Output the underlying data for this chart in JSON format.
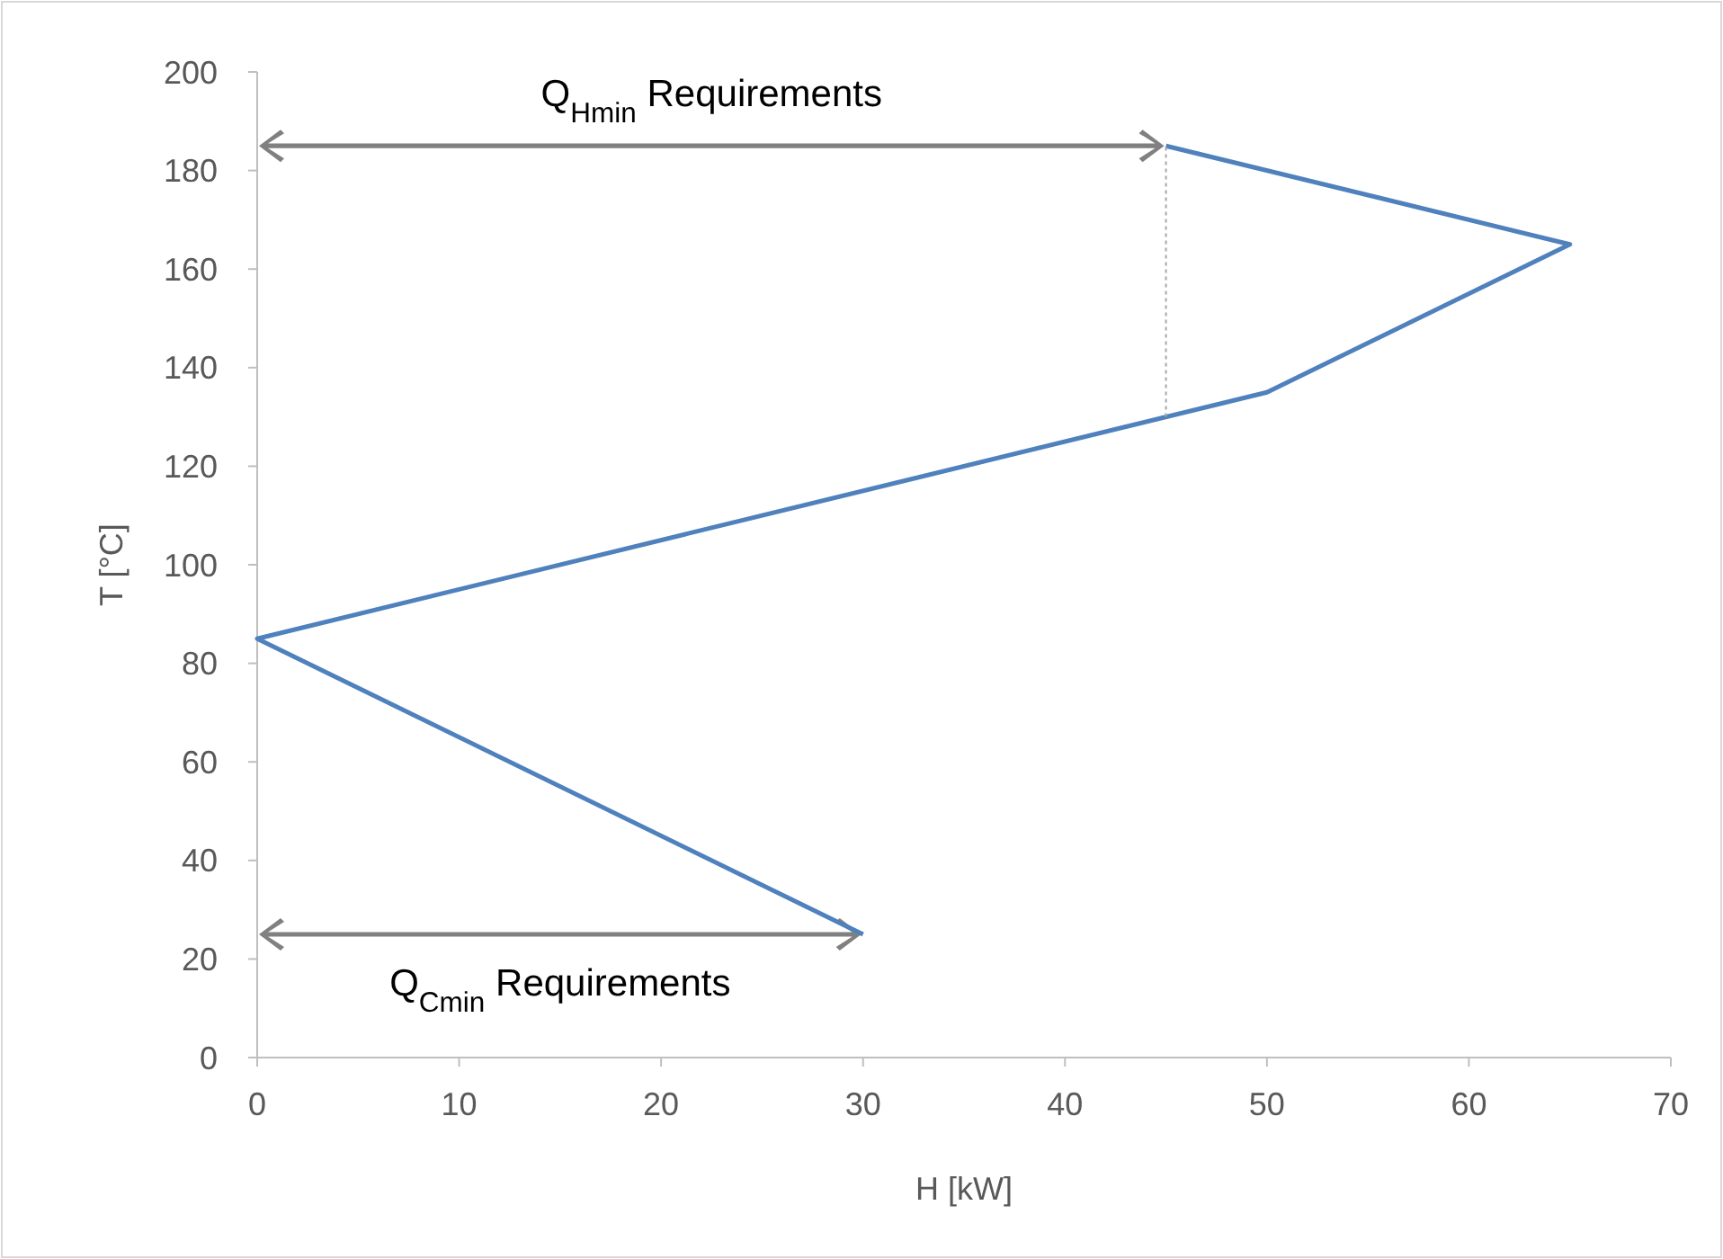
{
  "chart_data": {
    "type": "line",
    "xlabel": "H [kW]",
    "ylabel": "T [°C]",
    "xlim": [
      0,
      70
    ],
    "xticks": [
      0,
      10,
      20,
      30,
      40,
      50,
      60,
      70
    ],
    "ylim": [
      0,
      200
    ],
    "yticks": [
      0,
      20,
      40,
      60,
      80,
      100,
      120,
      140,
      160,
      180,
      200
    ],
    "grid": false,
    "series": [
      {
        "color": "#4f81bd",
        "x": [
          45,
          65,
          50,
          0,
          30
        ],
        "values": [
          185,
          165,
          135,
          85,
          25
        ],
        "line_style": "solid"
      },
      {
        "color": "#a6a6a6",
        "x": [
          45,
          45
        ],
        "values": [
          130,
          185
        ],
        "line_style": "dotted"
      }
    ],
    "annotations": [
      "Q$_{Hmin}$ Requirements",
      "Q$_{Cmin}$ Requirements"
    ]
  }
}
